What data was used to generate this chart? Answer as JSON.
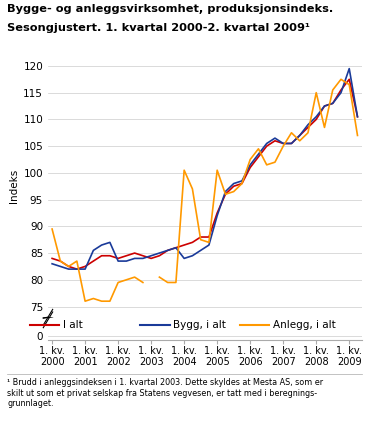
{
  "title_line1": "Bygge- og anleggsvirksomhet, produksjonsindeks.",
  "title_line2": "Sesongjustert. 1. kvartal 2000-2. kvartal 2009¹",
  "ylabel": "Indeks",
  "footnote": "¹ Brudd i anleggsindeksen i 1. kvartal 2003. Dette skyldes at Mesta AS, som er\nskilt ut som et privat selskap fra Statens vegvesen, er tatt med i beregnings-\ngrunnlaget.",
  "legend": [
    "I alt",
    "Bygg, i alt",
    "Anlegg, i alt"
  ],
  "colors": [
    "#cc0000",
    "#1a3a99",
    "#ff9900"
  ],
  "quarter_labels": [
    "1. kv.\n2000",
    "1. kv.\n2001",
    "1. kv.\n2002",
    "1. kv.\n2003",
    "1. kv.\n2004",
    "1. kv.\n2005",
    "1. kv.\n2006",
    "1. kv.\n2007",
    "1. kv.\n2008",
    "1. kv.\n2009"
  ],
  "quarter_positions": [
    0,
    4,
    8,
    12,
    16,
    20,
    24,
    28,
    32,
    36
  ],
  "i_alt": [
    84.0,
    83.5,
    82.5,
    82.0,
    82.5,
    83.5,
    84.5,
    84.5,
    84.0,
    84.5,
    85.0,
    84.5,
    84.0,
    84.5,
    85.5,
    86.0,
    86.5,
    87.0,
    88.0,
    88.0,
    92.5,
    96.0,
    97.5,
    98.0,
    101.0,
    103.0,
    105.0,
    106.0,
    105.5,
    105.5,
    107.0,
    108.5,
    110.0,
    112.5,
    113.0,
    115.5,
    117.5,
    110.5
  ],
  "bygg_i_alt": [
    83.0,
    82.5,
    82.0,
    82.0,
    82.0,
    85.5,
    86.5,
    87.0,
    83.5,
    83.5,
    84.0,
    84.0,
    84.5,
    85.0,
    85.5,
    86.0,
    84.0,
    84.5,
    85.5,
    86.5,
    92.0,
    96.5,
    98.0,
    98.5,
    101.5,
    103.5,
    105.5,
    106.5,
    105.5,
    105.5,
    107.0,
    109.0,
    110.5,
    112.5,
    113.0,
    115.0,
    119.5,
    110.5
  ],
  "anlegg_i_alt": [
    89.5,
    83.5,
    82.5,
    83.5,
    76.0,
    76.5,
    76.0,
    76.0,
    79.5,
    80.0,
    80.5,
    79.5,
    null,
    80.5,
    79.5,
    79.5,
    100.5,
    97.0,
    87.5,
    87.0,
    100.5,
    96.0,
    96.5,
    98.0,
    102.5,
    104.5,
    101.5,
    102.0,
    105.0,
    107.5,
    106.0,
    107.5,
    115.0,
    108.5,
    115.5,
    117.5,
    116.5,
    107.0
  ]
}
